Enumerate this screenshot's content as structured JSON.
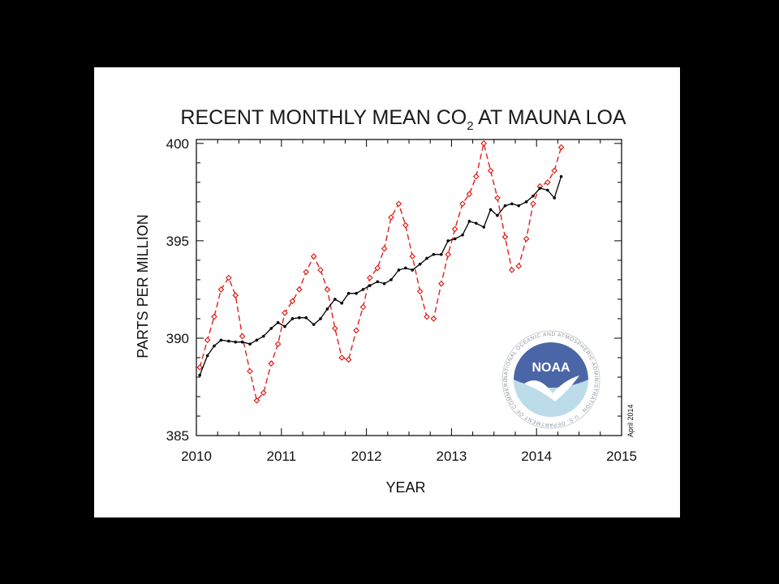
{
  "slide": {
    "stamp": "April 2014",
    "logo": {
      "name": "noaa-logo",
      "wordmark": "NOAA",
      "ring_text": "NATIONAL OCEANIC AND ATMOSPHERIC ADMINISTRATION · U.S. DEPARTMENT OF COMMERCE ·"
    }
  },
  "chart_data": {
    "type": "line",
    "title": "RECENT MONTHLY MEAN CO",
    "title_subscript": "2",
    "title_suffix": " AT MAUNA LOA",
    "xlabel": "YEAR",
    "ylabel": "PARTS PER MILLION",
    "xlim": [
      2010,
      2015
    ],
    "ylim": [
      385,
      400.2
    ],
    "x_ticks": [
      2010,
      2011,
      2012,
      2013,
      2014,
      2015
    ],
    "y_ticks": [
      385,
      390,
      395,
      400
    ],
    "grid": false,
    "legend": "none",
    "colors": {
      "monthly": "#e0201b",
      "trend": "#000000"
    },
    "x": [
      2010.04,
      2010.13,
      2010.21,
      2010.29,
      2010.38,
      2010.46,
      2010.54,
      2010.63,
      2010.71,
      2010.79,
      2010.88,
      2010.96,
      2011.04,
      2011.13,
      2011.21,
      2011.29,
      2011.38,
      2011.46,
      2011.54,
      2011.63,
      2011.71,
      2011.79,
      2011.88,
      2011.96,
      2012.04,
      2012.13,
      2012.21,
      2012.29,
      2012.38,
      2012.46,
      2012.54,
      2012.63,
      2012.71,
      2012.79,
      2012.88,
      2012.96,
      2013.04,
      2013.13,
      2013.21,
      2013.29,
      2013.38,
      2013.46,
      2013.54,
      2013.63,
      2013.71,
      2013.79,
      2013.88,
      2013.96,
      2014.04,
      2014.13,
      2014.21,
      2014.29
    ],
    "series": [
      {
        "values": [
          388.5,
          389.9,
          391.1,
          392.5,
          393.1,
          392.2,
          390.1,
          388.3,
          386.8,
          387.2,
          388.7,
          389.7,
          391.3,
          391.9,
          392.5,
          393.4,
          394.2,
          393.5,
          392.5,
          390.5,
          389.0,
          388.9,
          390.4,
          391.6,
          393.1,
          393.6,
          394.6,
          396.2,
          396.9,
          395.8,
          394.2,
          392.4,
          391.1,
          391.0,
          392.8,
          394.3,
          395.6,
          396.9,
          397.4,
          398.3,
          400.0,
          398.6,
          397.2,
          395.2,
          393.5,
          393.7,
          395.1,
          396.9,
          397.8,
          398.0,
          398.6,
          399.8
        ]
      },
      {
        "values": [
          388.1,
          389.1,
          389.6,
          389.9,
          389.85,
          389.8,
          389.8,
          389.7,
          389.9,
          390.1,
          390.5,
          390.8,
          390.6,
          391.0,
          391.05,
          391.05,
          390.7,
          391.0,
          391.5,
          392.0,
          391.8,
          392.3,
          392.3,
          392.5,
          392.7,
          392.9,
          392.8,
          393.0,
          393.5,
          393.6,
          393.5,
          393.8,
          394.1,
          394.3,
          394.3,
          395.0,
          395.1,
          395.3,
          396.0,
          395.9,
          395.7,
          396.6,
          396.3,
          396.8,
          396.9,
          396.8,
          397.0,
          397.3,
          397.7,
          397.6,
          397.2,
          398.3
        ]
      }
    ]
  }
}
